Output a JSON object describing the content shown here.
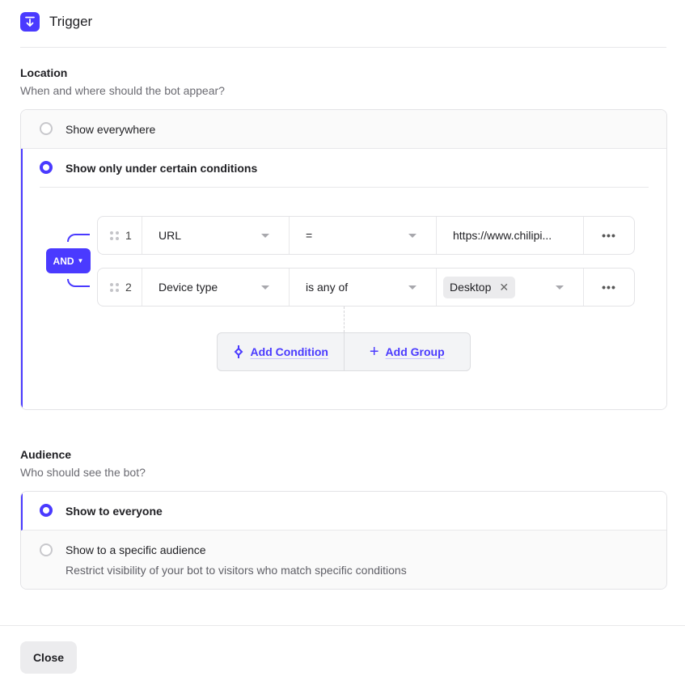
{
  "header": {
    "title": "Trigger",
    "icon": "download-arrow-icon",
    "accent": "#4a3aff"
  },
  "location": {
    "title": "Location",
    "subtitle": "When and where should the bot appear?",
    "options": [
      {
        "label": "Show everywhere",
        "selected": false
      },
      {
        "label": "Show only under certain conditions",
        "selected": true
      }
    ],
    "operator": "AND",
    "conditions": [
      {
        "index": "1",
        "field": "URL",
        "op": "=",
        "value": "https://www.chilipi..."
      },
      {
        "index": "2",
        "field": "Device type",
        "op": "is any of",
        "chip": "Desktop"
      }
    ],
    "add_condition": "Add Condition",
    "add_group": "Add Group"
  },
  "audience": {
    "title": "Audience",
    "subtitle": "Who should see the bot?",
    "options": [
      {
        "label": "Show to everyone",
        "selected": true
      },
      {
        "label": "Show to a specific audience",
        "selected": false,
        "description": "Restrict visibility of your bot to visitors who match specific conditions"
      }
    ]
  },
  "footer": {
    "close": "Close"
  }
}
